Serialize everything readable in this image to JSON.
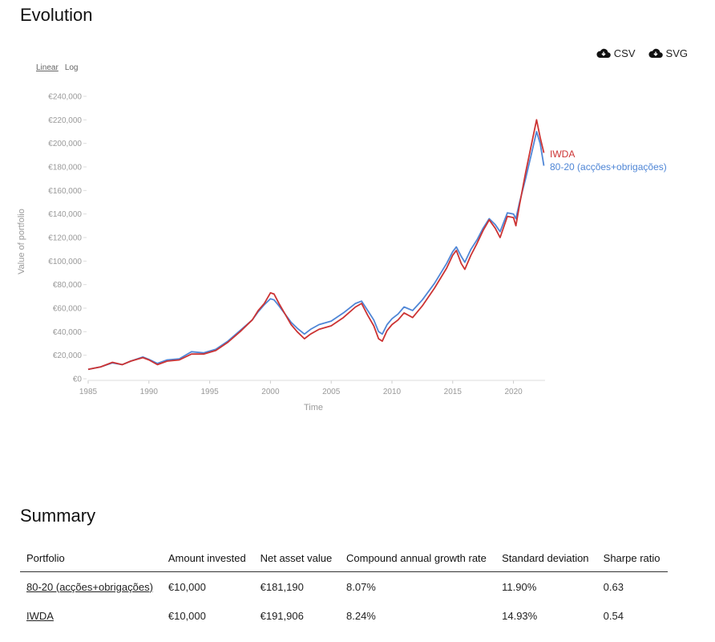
{
  "evolution": {
    "title": "Evolution",
    "scale_options": {
      "linear": "Linear",
      "log": "Log",
      "selected": "linear"
    },
    "downloads": [
      {
        "icon": "cloud-download-icon",
        "label": "CSV"
      },
      {
        "icon": "cloud-download-icon",
        "label": "SVG"
      }
    ]
  },
  "chart_data": {
    "type": "line",
    "xlabel": "Time",
    "ylabel": "Value of portfolio",
    "xlim": [
      1985,
      2022.6
    ],
    "ylim": [
      0,
      240000
    ],
    "x_ticks": [
      "1985",
      "1990",
      "1995",
      "2000",
      "2005",
      "2010",
      "2015",
      "2020"
    ],
    "y_ticks": [
      "€0",
      "€20,000",
      "€40,000",
      "€60,000",
      "€80,000",
      "€100,000",
      "€120,000",
      "€140,000",
      "€160,000",
      "€180,000",
      "€200,000",
      "€220,000",
      "€240,000"
    ],
    "grid": false,
    "legend": "end-of-line labels",
    "series": [
      {
        "name": "IWDA",
        "color": "#cc3333",
        "x": [
          1985.0,
          1986.0,
          1987.0,
          1987.8,
          1988.5,
          1989.5,
          1990.0,
          1990.7,
          1991.5,
          1992.5,
          1993.5,
          1994.5,
          1995.5,
          1996.5,
          1997.5,
          1998.5,
          1999.0,
          1999.5,
          2000.0,
          2000.3,
          2000.7,
          2001.2,
          2001.7,
          2002.2,
          2002.8,
          2003.3,
          2004.0,
          2005.0,
          2006.0,
          2007.0,
          2007.5,
          2008.0,
          2008.5,
          2008.9,
          2009.2,
          2009.6,
          2010.0,
          2010.5,
          2011.0,
          2011.7,
          2012.5,
          2013.5,
          2014.5,
          2015.0,
          2015.3,
          2015.7,
          2016.0,
          2016.5,
          2017.0,
          2017.5,
          2018.0,
          2018.5,
          2018.9,
          2019.5,
          2020.0,
          2020.2,
          2020.5,
          2021.0,
          2021.5,
          2021.9,
          2022.2,
          2022.5
        ],
        "y": [
          8000,
          10000,
          14000,
          12000,
          15000,
          18000,
          16000,
          12000,
          15000,
          16000,
          21000,
          21000,
          24000,
          31000,
          40000,
          50000,
          58000,
          64000,
          73000,
          72000,
          64000,
          55000,
          46000,
          40000,
          34000,
          38000,
          42000,
          45000,
          52000,
          61000,
          64000,
          54000,
          45000,
          34000,
          32000,
          41000,
          46000,
          50000,
          56000,
          52000,
          62000,
          77000,
          94000,
          105000,
          109000,
          98000,
          93000,
          105000,
          115000,
          126000,
          135000,
          128000,
          120000,
          138000,
          137000,
          130000,
          148000,
          175000,
          200000,
          220000,
          205000,
          192000
        ]
      },
      {
        "name": "80-20 (acções+obrigações)",
        "color": "#4f86d6",
        "x": [
          1985.0,
          1986.0,
          1987.0,
          1987.8,
          1988.5,
          1989.5,
          1990.0,
          1990.7,
          1991.5,
          1992.5,
          1993.5,
          1994.5,
          1995.5,
          1996.5,
          1997.5,
          1998.5,
          1999.0,
          1999.5,
          2000.0,
          2000.3,
          2000.7,
          2001.2,
          2001.7,
          2002.2,
          2002.8,
          2003.3,
          2004.0,
          2005.0,
          2006.0,
          2007.0,
          2007.5,
          2008.0,
          2008.5,
          2008.9,
          2009.2,
          2009.6,
          2010.0,
          2010.5,
          2011.0,
          2011.7,
          2012.5,
          2013.5,
          2014.5,
          2015.0,
          2015.3,
          2015.7,
          2016.0,
          2016.5,
          2017.0,
          2017.5,
          2018.0,
          2018.5,
          2018.9,
          2019.5,
          2020.0,
          2020.2,
          2020.5,
          2021.0,
          2021.5,
          2021.9,
          2022.2,
          2022.5
        ],
        "y": [
          8000,
          10000,
          13500,
          12000,
          15000,
          18500,
          16500,
          13000,
          16000,
          17000,
          23000,
          22000,
          25000,
          32000,
          41000,
          50000,
          57000,
          63000,
          68000,
          67000,
          62000,
          55000,
          48000,
          43000,
          38000,
          42000,
          46000,
          49000,
          56000,
          64000,
          66000,
          58000,
          50000,
          40000,
          38000,
          46000,
          51000,
          55000,
          61000,
          58000,
          67000,
          81000,
          98000,
          108000,
          112000,
          104000,
          99000,
          110000,
          118000,
          128000,
          136000,
          131000,
          125000,
          141000,
          140000,
          136000,
          150000,
          170000,
          192000,
          210000,
          200000,
          181000
        ]
      }
    ]
  },
  "summary": {
    "title": "Summary",
    "columns": [
      "Portfolio",
      "Amount invested",
      "Net asset value",
      "Compound annual growth rate",
      "Standard deviation",
      "Sharpe ratio"
    ],
    "rows": [
      [
        "80-20 (acções+obrigações)",
        "€10,000",
        "€181,190",
        "8.07%",
        "11.90%",
        "0.63"
      ],
      [
        "IWDA",
        "€10,000",
        "€191,906",
        "8.24%",
        "14.93%",
        "0.54"
      ]
    ]
  }
}
